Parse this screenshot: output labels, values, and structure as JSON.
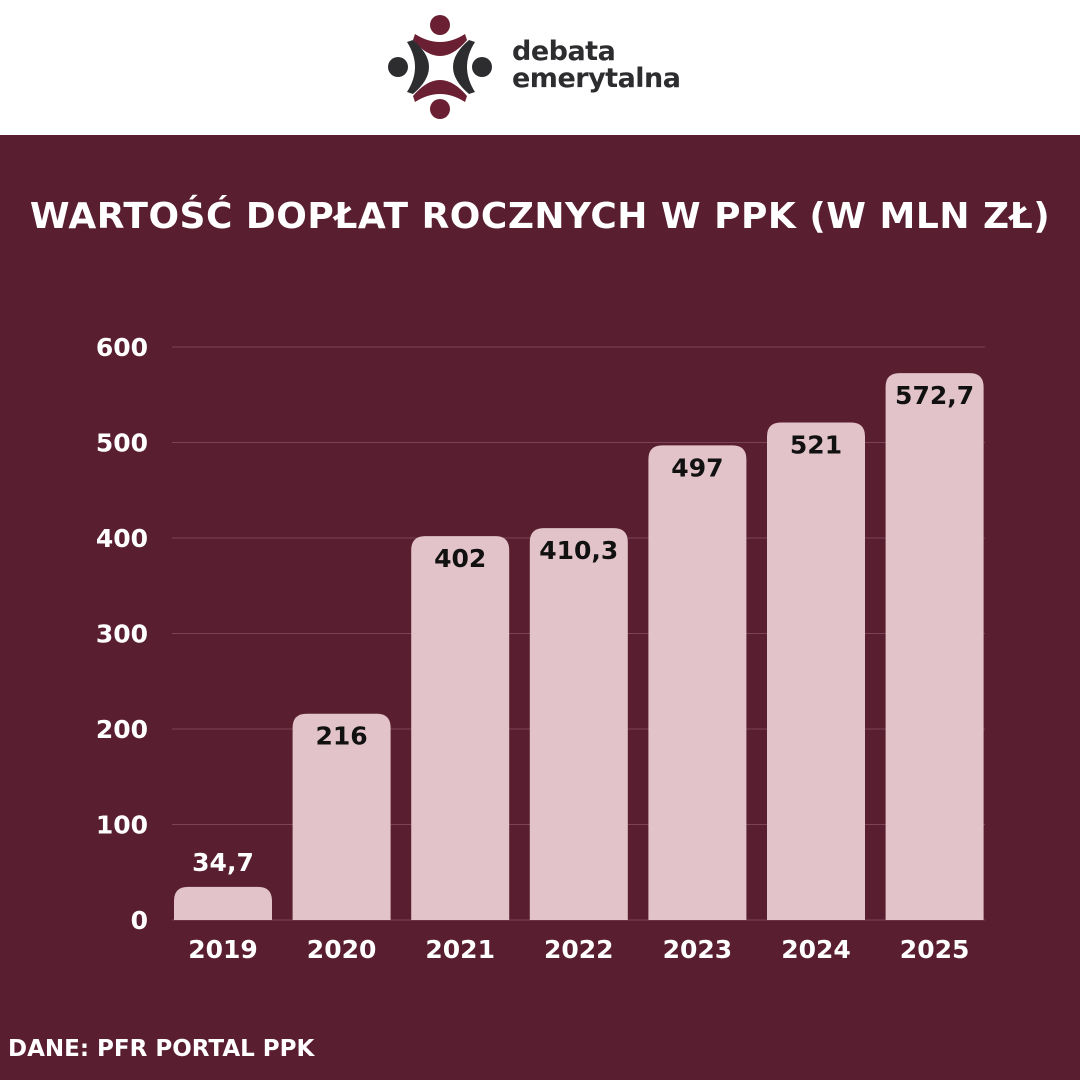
{
  "brand": {
    "line1": "debata",
    "line2": "emerytalna",
    "colors": {
      "accent": "#6b1f33",
      "dark": "#2d2d30"
    }
  },
  "title": "WARTOŚĆ DOPŁAT ROCZNYCH W PPK (W MLN ZŁ)",
  "source": "DANE: PFR PORTAL PPK",
  "colors": {
    "background": "#5a1e31",
    "bar": "#e2c3c9",
    "grid": "#7a4456"
  },
  "chart_data": {
    "type": "bar",
    "title": "WARTOŚĆ DOPŁAT ROCZNYCH W PPK (W MLN ZŁ)",
    "categories": [
      "2019",
      "2020",
      "2021",
      "2022",
      "2023",
      "2024",
      "2025"
    ],
    "values": [
      34.7,
      216,
      402,
      410.3,
      497,
      521,
      572.7
    ],
    "value_labels": [
      "34,7",
      "216",
      "402",
      "410,3",
      "497",
      "521",
      "572,7"
    ],
    "yticks": [
      "0",
      "100",
      "200",
      "300",
      "400",
      "500",
      "600"
    ],
    "ylim": [
      0,
      600
    ],
    "grid": true,
    "xlabel": "",
    "ylabel": ""
  }
}
